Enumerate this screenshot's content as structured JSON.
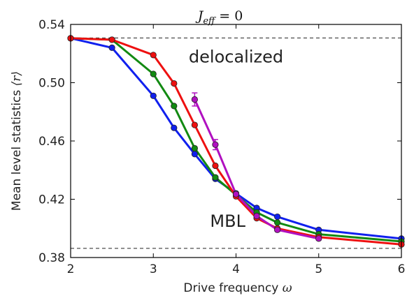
{
  "chart_data": {
    "type": "line",
    "title": "J_eff = 0",
    "title_parts": {
      "main": "J",
      "sub": "eff",
      "rest": " = 0"
    },
    "xlabel": "Drive frequency",
    "xlabel_symbol": "ω",
    "ylabel": "Mean level statistics",
    "ylabel_symbol": "⟨r⟩",
    "xlim": [
      2,
      6
    ],
    "ylim": [
      0.38,
      0.54
    ],
    "xticks": [
      "2",
      "3",
      "4",
      "5",
      "6"
    ],
    "yticks": [
      "0.38",
      "0.42",
      "0.46",
      "0.50",
      "0.54"
    ],
    "grid": false,
    "legend": "none",
    "reference_lines": [
      0.5307,
      0.3863
    ],
    "annotations": [
      {
        "text": "delocalized",
        "x": 4.0,
        "y": 0.514
      },
      {
        "text": "MBL",
        "x": 3.9,
        "y": 0.401
      }
    ],
    "series": [
      {
        "color": "#1020ee",
        "x": [
          2.0,
          2.5,
          3.0,
          3.25,
          3.5,
          3.75,
          4.0,
          4.25,
          4.5,
          5.0,
          6.0
        ],
        "y": [
          0.5305,
          0.524,
          0.491,
          0.469,
          0.451,
          0.434,
          0.424,
          0.414,
          0.408,
          0.399,
          0.393
        ]
      },
      {
        "color": "#128a12",
        "x": [
          2.0,
          2.5,
          3.0,
          3.25,
          3.5,
          3.75,
          4.0,
          4.25,
          4.5,
          5.0,
          6.0
        ],
        "y": [
          0.5305,
          0.5295,
          0.506,
          0.484,
          0.455,
          0.435,
          0.423,
          0.411,
          0.404,
          0.396,
          0.391
        ]
      },
      {
        "color": "#ee1010",
        "x": [
          2.0,
          2.5,
          3.0,
          3.25,
          3.5,
          3.75,
          4.0,
          4.25,
          4.5,
          5.0,
          6.0
        ],
        "y": [
          0.5305,
          0.5295,
          0.519,
          0.4995,
          0.471,
          0.443,
          0.422,
          0.407,
          0.4,
          0.394,
          0.389
        ]
      },
      {
        "color": "#b010c0",
        "x": [
          3.5,
          3.75,
          4.0,
          4.25,
          4.5,
          5.0
        ],
        "y": [
          0.4885,
          0.4575,
          0.4235,
          0.4085,
          0.399,
          0.393
        ],
        "yerr": [
          0.0045,
          0.0035,
          0.001,
          0.001,
          0.001,
          0.001
        ]
      }
    ]
  }
}
